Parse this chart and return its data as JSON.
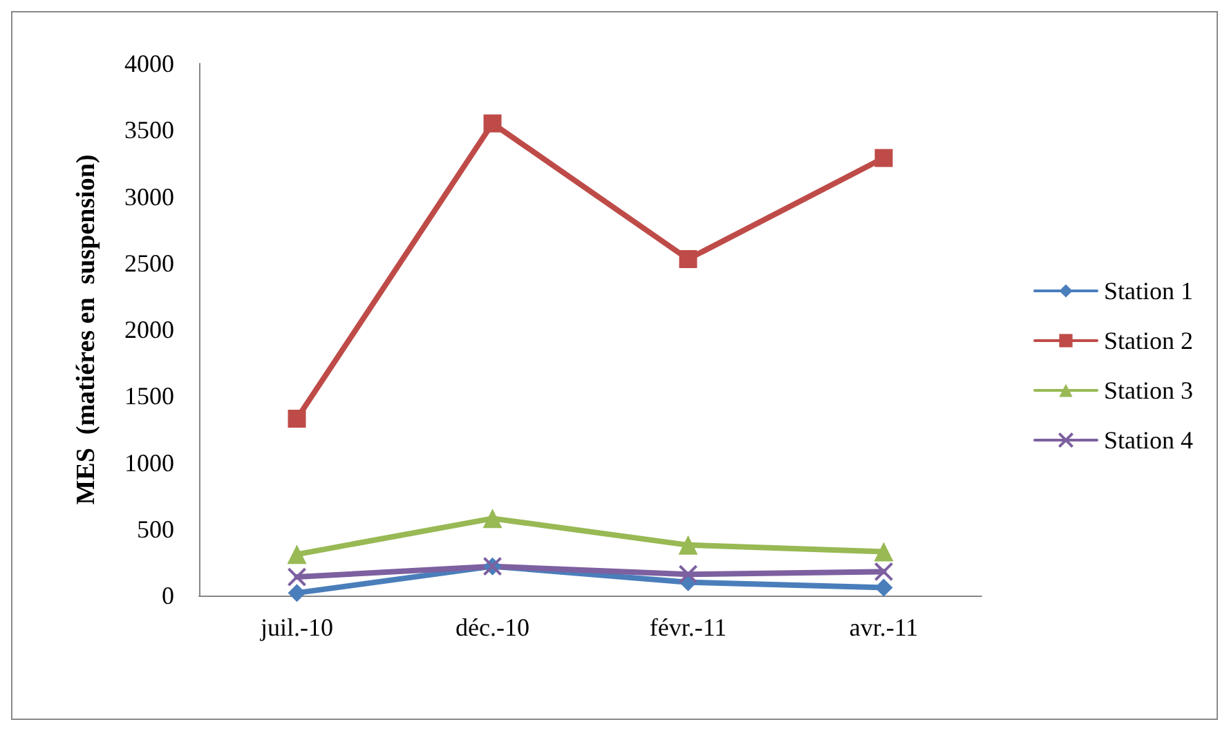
{
  "chart_data": {
    "type": "line",
    "ylabel": "MES  (matiéres en  suspension)",
    "categories": [
      "juil.-10",
      "déc.-10",
      "févr.-11",
      "avr.-11"
    ],
    "series": [
      {
        "name": "Station 1",
        "color": "#4a7ebb",
        "marker": "diamond",
        "values": [
          20,
          220,
          100,
          60
        ]
      },
      {
        "name": "Station 2",
        "color": "#be4b48",
        "marker": "square",
        "values": [
          1330,
          3550,
          2530,
          3290
        ]
      },
      {
        "name": "Station 3",
        "color": "#98b954",
        "marker": "triangle",
        "values": [
          310,
          580,
          380,
          330
        ]
      },
      {
        "name": "Station 4",
        "color": "#7d60a0",
        "marker": "cross",
        "values": [
          140,
          220,
          160,
          180
        ]
      }
    ],
    "ylim": [
      0,
      4000
    ],
    "yticks": [
      0,
      500,
      1000,
      1500,
      2000,
      2500,
      3000,
      3500,
      4000
    ],
    "grid": false,
    "legend": "right",
    "line_style": "solid"
  }
}
